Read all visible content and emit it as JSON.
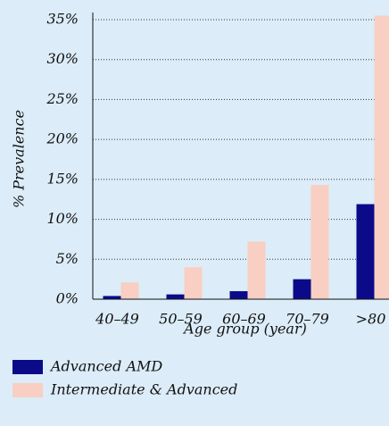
{
  "chart_data": {
    "type": "bar",
    "x_label": "Age group (year)",
    "y_label": "% Prevalence",
    "categories": [
      "40–49",
      "50–59",
      "60–69",
      "70–79",
      ">80"
    ],
    "series": [
      {
        "name": "Advanced AMD",
        "color": "#0b0b8a",
        "values": [
          0.4,
          0.6,
          1.0,
          2.5,
          11.9
        ]
      },
      {
        "name": "Intermediate & Advanced",
        "color": "#f8cfc2",
        "values": [
          2.1,
          4.0,
          7.2,
          14.3,
          35.5
        ]
      }
    ],
    "ylim": [
      0,
      35
    ],
    "yticks": [
      {
        "value": 0,
        "label": "0%"
      },
      {
        "value": 5,
        "label": "5%"
      },
      {
        "value": 10,
        "label": "10%"
      },
      {
        "value": 15,
        "label": "15%"
      },
      {
        "value": 20,
        "label": "20%"
      },
      {
        "value": 25,
        "label": "25%"
      },
      {
        "value": 30,
        "label": "30%"
      },
      {
        "value": 35,
        "label": "35%"
      }
    ],
    "grid": true
  }
}
